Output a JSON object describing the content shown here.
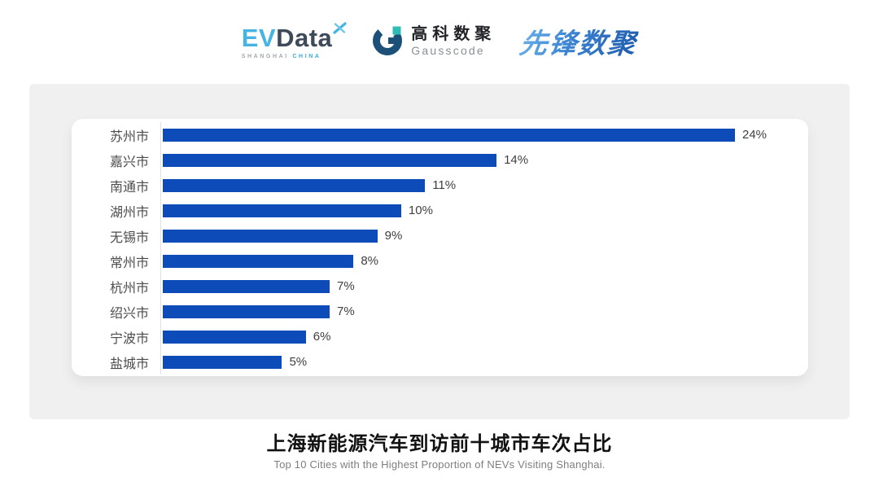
{
  "header": {
    "evdata": {
      "ev": "EV",
      "data": "Data",
      "sub_shanghai": "SHANGHAI",
      "sub_china": "CHINA",
      "accent_color": "#45b4e4",
      "dark_color": "#3d4a5a"
    },
    "gausscode": {
      "cn": "高科数聚",
      "en": "Gausscode",
      "mark_dark_color": "#1b5078",
      "mark_teal_color": "#2fbcb4"
    },
    "xianfeng": {
      "text": "先锋数聚",
      "gradient_start": "#6ab2e8",
      "gradient_end": "#1f5cae"
    }
  },
  "chart_data": {
    "type": "bar",
    "orientation": "horizontal",
    "title": "上海新能源汽车到访前十城市车次占比",
    "subtitle": "Top 10 Cities with the Highest Proportion of  NEVs Visiting Shanghai.",
    "categories": [
      "苏州市",
      "嘉兴市",
      "南通市",
      "湖州市",
      "无锡市",
      "常州市",
      "杭州市",
      "绍兴市",
      "宁波市",
      "盐城市"
    ],
    "values": [
      24,
      14,
      11,
      10,
      9,
      8,
      7,
      7,
      6,
      5
    ],
    "value_labels": [
      "24%",
      "14%",
      "11%",
      "10%",
      "9%",
      "8%",
      "7%",
      "7%",
      "6%",
      "5%"
    ],
    "unit": "%",
    "xlim": [
      0,
      24
    ],
    "grid": false,
    "legend": false,
    "bar_color": "#0d4bb8",
    "axis_line_color": "#e1e1e1",
    "label_color": "#4c4c4c"
  }
}
